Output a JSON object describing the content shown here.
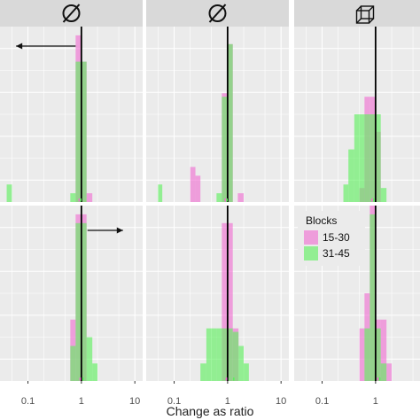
{
  "chart_data": {
    "type": "histogram-facets",
    "xlabel": "Change as ratio",
    "x_scale": "log10",
    "xlim": [
      0.03,
      14
    ],
    "x_ticks": [
      0.1,
      1,
      10
    ],
    "x_tick_labels": [
      "0.1",
      "1",
      "10"
    ],
    "ref_line_x": 1,
    "grid": true,
    "legend": {
      "title": "Blocks",
      "placement": "right",
      "items": [
        {
          "label": "15-30",
          "color": "#f06ed2"
        },
        {
          "label": "31-45",
          "color": "#5cf05c"
        }
      ]
    },
    "strip_icons": [
      "empty-set-icon",
      "empty-set-icon",
      "cube-icon"
    ],
    "arrows": [
      {
        "row": 0,
        "col": 0,
        "direction": "left"
      },
      {
        "row": 1,
        "col": 0,
        "direction": "right"
      }
    ],
    "panels": [
      {
        "row": 0,
        "col": 0,
        "series": [
          {
            "name": "15-30",
            "bins": [
              [
                0.78,
                1.0,
                0.95
              ],
              [
                1.0,
                1.25,
                0.8
              ],
              [
                1.25,
                1.6,
                0.05
              ]
            ]
          },
          {
            "name": "31-45",
            "bins": [
              [
                0.04,
                0.05,
                0.1
              ],
              [
                0.62,
                0.78,
                0.05
              ],
              [
                0.78,
                1.0,
                0.8
              ],
              [
                1.0,
                1.25,
                0.8
              ]
            ]
          }
        ]
      },
      {
        "row": 0,
        "col": 1,
        "series": [
          {
            "name": "15-30",
            "bins": [
              [
                0.78,
                1.0,
                0.62
              ],
              [
                1.0,
                1.25,
                0.9
              ],
              [
                0.2,
                0.25,
                0.2
              ],
              [
                0.25,
                0.31,
                0.15
              ],
              [
                1.55,
                2.0,
                0.05
              ]
            ]
          },
          {
            "name": "31-45",
            "bins": [
              [
                0.05,
                0.06,
                0.1
              ],
              [
                0.62,
                0.78,
                0.05
              ],
              [
                0.78,
                1.0,
                0.6
              ],
              [
                1.0,
                1.25,
                0.9
              ]
            ]
          }
        ]
      },
      {
        "row": 0,
        "col": 2,
        "series": [
          {
            "name": "15-30",
            "bins": [
              [
                0.5,
                0.62,
                0.08
              ],
              [
                0.62,
                0.78,
                0.6
              ],
              [
                0.78,
                1.0,
                0.6
              ],
              [
                1.0,
                1.25,
                0.4
              ]
            ]
          },
          {
            "name": "31-45",
            "bins": [
              [
                0.25,
                0.31,
                0.1
              ],
              [
                0.31,
                0.4,
                0.3
              ],
              [
                0.4,
                0.5,
                0.5
              ],
              [
                0.5,
                0.62,
                0.5
              ],
              [
                0.62,
                0.78,
                0.5
              ],
              [
                0.78,
                1.0,
                0.5
              ],
              [
                1.0,
                1.25,
                0.5
              ],
              [
                1.25,
                1.6,
                0.08
              ]
            ]
          }
        ]
      },
      {
        "row": 1,
        "col": 0,
        "series": [
          {
            "name": "15-30",
            "bins": [
              [
                0.62,
                0.78,
                0.35
              ],
              [
                0.78,
                1.0,
                0.95
              ],
              [
                1.0,
                1.25,
                0.95
              ]
            ]
          },
          {
            "name": "31-45",
            "bins": [
              [
                0.62,
                0.78,
                0.2
              ],
              [
                0.78,
                1.0,
                0.9
              ],
              [
                1.0,
                1.25,
                0.9
              ],
              [
                1.25,
                1.6,
                0.25
              ],
              [
                1.6,
                2.0,
                0.1
              ]
            ]
          }
        ]
      },
      {
        "row": 1,
        "col": 1,
        "series": [
          {
            "name": "15-30",
            "bins": [
              [
                0.78,
                1.0,
                0.9
              ],
              [
                1.0,
                1.25,
                0.9
              ],
              [
                1.25,
                1.6,
                0.3
              ]
            ]
          },
          {
            "name": "31-45",
            "bins": [
              [
                0.31,
                0.4,
                0.1
              ],
              [
                0.4,
                0.5,
                0.3
              ],
              [
                0.5,
                0.62,
                0.3
              ],
              [
                0.62,
                0.78,
                0.3
              ],
              [
                0.78,
                1.0,
                0.3
              ],
              [
                1.0,
                1.25,
                0.3
              ],
              [
                1.25,
                1.6,
                0.28
              ],
              [
                1.6,
                2.0,
                0.2
              ],
              [
                2.0,
                2.5,
                0.1
              ]
            ]
          }
        ]
      },
      {
        "row": 1,
        "col": 2,
        "series": [
          {
            "name": "15-30",
            "bins": [
              [
                0.5,
                0.62,
                0.3
              ],
              [
                0.62,
                0.78,
                0.5
              ],
              [
                0.78,
                1.0,
                1.0
              ],
              [
                1.0,
                1.25,
                0.35
              ],
              [
                1.25,
                1.6,
                0.35
              ],
              [
                1.6,
                2.0,
                0.1
              ]
            ]
          },
          {
            "name": "31-45",
            "bins": [
              [
                0.62,
                0.78,
                0.3
              ],
              [
                0.78,
                1.0,
                0.95
              ],
              [
                1.0,
                1.25,
                0.3
              ],
              [
                1.25,
                1.6,
                0.1
              ]
            ]
          }
        ]
      }
    ],
    "rug": [
      {
        "panel": 0,
        "pink": 0.91,
        "green": 0.97
      },
      {
        "panel": 1,
        "pink": 0.91,
        "green": 0.97
      },
      {
        "panel": 2,
        "pink": 0.86,
        "green": 0.93
      },
      {
        "panel": 3,
        "pink": 0.95,
        "green": 1.08
      },
      {
        "panel": 4,
        "pink": 0.95,
        "green": 1.3
      },
      {
        "panel": 5,
        "pink": 1.1,
        "green": 1.2
      }
    ]
  }
}
